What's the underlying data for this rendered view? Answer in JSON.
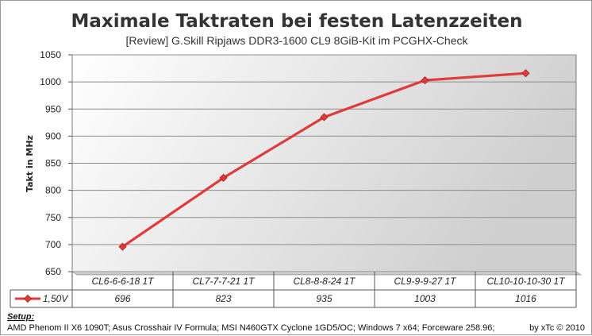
{
  "chart_data": {
    "type": "line",
    "title": "Maximale Taktraten bei festen Latenzzeiten",
    "subtitle": "[Review] G.Skill  Ripjaws  DDR3-1600  CL9 8GiB-Kit  im PCGHX-Check",
    "ylabel": "Takt  in MHz",
    "xlabel": "",
    "ylim": [
      650,
      1050
    ],
    "yticks": [
      650,
      700,
      750,
      800,
      850,
      900,
      950,
      1000,
      1050
    ],
    "ytick_labels": [
      "650",
      "700",
      "750",
      "800",
      "850",
      "900",
      "950",
      "1000",
      "1050"
    ],
    "grid": true,
    "legend_placement": "data-table-left",
    "categories": [
      "CL6-6-6-18 1T",
      "CL7-7-7-21 1T",
      "CL8-8-8-24 1T",
      "CL9-9-9-27 1T",
      "CL10-10-10-30 1T"
    ],
    "series": [
      {
        "name": "1,50V",
        "values": [
          696,
          823,
          935,
          1003,
          1016
        ],
        "color": "#e03a3a"
      }
    ]
  },
  "footer": {
    "setup_heading": "Setup:",
    "setup_text": "AMD Phenom II X6 1090T; Asus Crosshair IV Formula; MSI N460GTX Cyclone 1GD5/OC; Windows 7 x64; Forceware 258.96;",
    "credit": "by xTc © 2010"
  }
}
